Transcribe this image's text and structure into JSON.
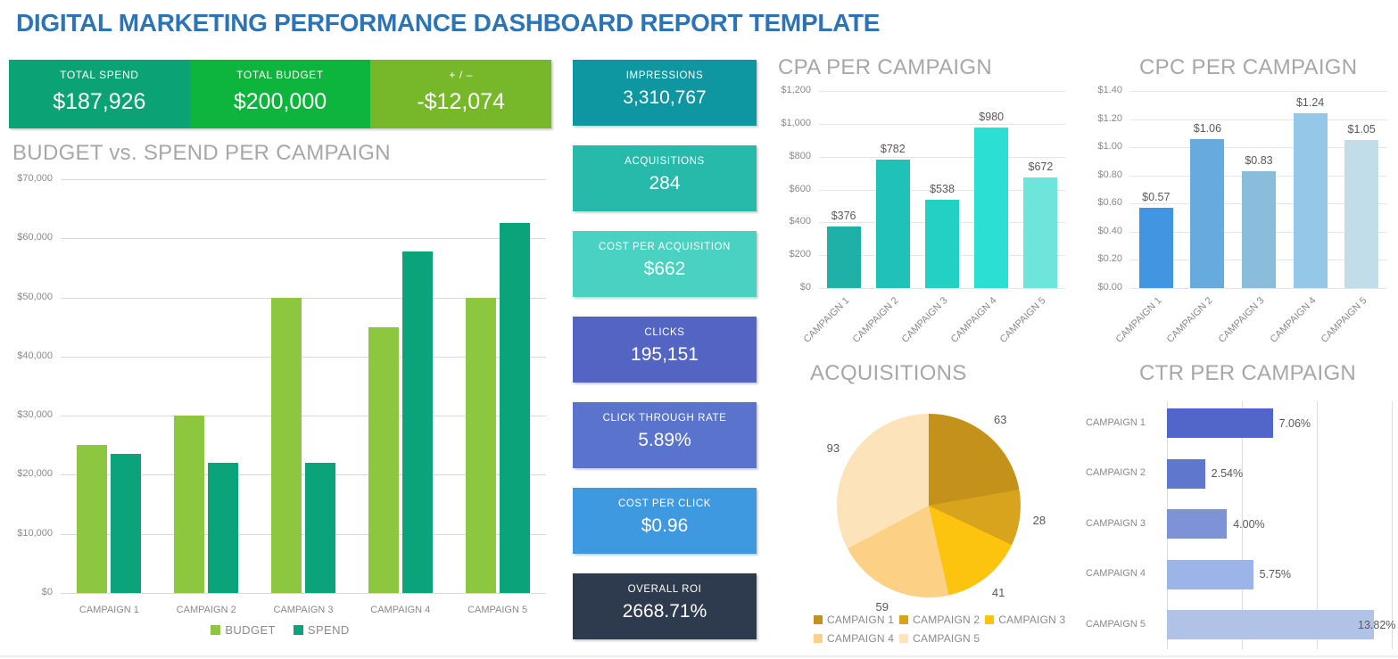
{
  "page_title": "DIGITAL MARKETING PERFORMANCE DASHBOARD REPORT TEMPLATE",
  "summary_cards": [
    {
      "label": "TOTAL SPEND",
      "value": "$187,926",
      "color": "#0ba376"
    },
    {
      "label": "TOTAL BUDGET",
      "value": "$200,000",
      "color": "#0db53c"
    },
    {
      "label": "+ / –",
      "value": "-$12,074",
      "color": "#77b82b"
    }
  ],
  "kpi_cards": [
    {
      "label": "IMPRESSIONS",
      "value": "3,310,767",
      "color": "#0e96a1"
    },
    {
      "label": "ACQUISITIONS",
      "value": "284",
      "color": "#27b9a9"
    },
    {
      "label": "COST PER ACQUISITION",
      "value": "$662",
      "color": "#49d1c1"
    },
    {
      "label": "CLICKS",
      "value": "195,151",
      "color": "#5464c2"
    },
    {
      "label": "CLICK THROUGH RATE",
      "value": "5.89%",
      "color": "#5a73cc"
    },
    {
      "label": "COST PER CLICK",
      "value": "$0.96",
      "color": "#3f99e0"
    },
    {
      "label": "OVERALL ROI",
      "value": "2668.71%",
      "color": "#2e3a4d"
    }
  ],
  "chart_data": [
    {
      "id": "budget_spend",
      "type": "bar",
      "title": "BUDGET vs. SPEND PER CAMPAIGN",
      "categories": [
        "CAMPAIGN 1",
        "CAMPAIGN 2",
        "CAMPAIGN 3",
        "CAMPAIGN 4",
        "CAMPAIGN 5"
      ],
      "series": [
        {
          "name": "BUDGET",
          "color": "#8dc63f",
          "values": [
            25000,
            30000,
            50000,
            45000,
            50000
          ]
        },
        {
          "name": "SPEND",
          "color": "#0aa37a",
          "values": [
            23500,
            22000,
            22000,
            57800,
            62600
          ]
        }
      ],
      "ylim": [
        0,
        70000
      ],
      "yticks": [
        "$0",
        "$10,000",
        "$20,000",
        "$30,000",
        "$40,000",
        "$50,000",
        "$60,000",
        "$70,000"
      ],
      "grid": true,
      "legend_position": "bottom"
    },
    {
      "id": "cpa",
      "type": "bar",
      "title": "CPA PER CAMPAIGN",
      "categories": [
        "CAMPAIGN 1",
        "CAMPAIGN 2",
        "CAMPAIGN 3",
        "CAMPAIGN 4",
        "CAMPAIGN 5"
      ],
      "values": [
        376,
        782,
        538,
        980,
        672
      ],
      "data_labels": [
        "$376",
        "$782",
        "$538",
        "$980",
        "$672"
      ],
      "bar_colors": [
        "#1fb1a8",
        "#20c1b6",
        "#23d1c4",
        "#2bdfd2",
        "#6de5da"
      ],
      "ylim": [
        0,
        1200
      ],
      "yticks": [
        "$0",
        "$200",
        "$400",
        "$600",
        "$800",
        "$1,000",
        "$1,200"
      ],
      "grid": true
    },
    {
      "id": "cpc",
      "type": "bar",
      "title": "CPC PER CAMPAIGN",
      "categories": [
        "CAMPAIGN 1",
        "CAMPAIGN 2",
        "CAMPAIGN 3",
        "CAMPAIGN 4",
        "CAMPAIGN 5"
      ],
      "values": [
        0.57,
        1.06,
        0.83,
        1.24,
        1.05
      ],
      "data_labels": [
        "$0.57",
        "$1.06",
        "$0.83",
        "$1.24",
        "$1.05"
      ],
      "bar_colors": [
        "#4295e0",
        "#67aadd",
        "#8abcdc",
        "#95c7e8",
        "#c3dcea"
      ],
      "ylim": [
        0,
        1.4
      ],
      "yticks": [
        "$0.00",
        "$0.20",
        "$0.40",
        "$0.60",
        "$0.80",
        "$1.00",
        "$1.20",
        "$1.40"
      ],
      "grid": true
    },
    {
      "id": "acquisitions_pie",
      "type": "pie",
      "title": "ACQUISITIONS",
      "categories": [
        "CAMPAIGN 1",
        "CAMPAIGN 2",
        "CAMPAIGN 3",
        "CAMPAIGN 4",
        "CAMPAIGN 5"
      ],
      "values": [
        63,
        28,
        41,
        59,
        93
      ],
      "slice_colors": [
        "#c4921a",
        "#d8a41e",
        "#fcc30f",
        "#fcd186",
        "#fde3ba"
      ],
      "start_angle": 0,
      "legend_position": "bottom"
    },
    {
      "id": "ctr",
      "type": "bar_horizontal",
      "title": "CTR PER CAMPAIGN",
      "categories": [
        "CAMPAIGN 1",
        "CAMPAIGN 2",
        "CAMPAIGN 3",
        "CAMPAIGN 4",
        "CAMPAIGN 5"
      ],
      "values": [
        7.06,
        2.54,
        4.0,
        5.75,
        13.82
      ],
      "data_labels": [
        "7.06%",
        "2.54%",
        "4.00%",
        "5.75%",
        "13.82%"
      ],
      "bar_colors": [
        "#5265c8",
        "#5f78ce",
        "#7e93d7",
        "#9db4e8",
        "#b0c2e5"
      ],
      "xlim": [
        0,
        15
      ],
      "xgrid": [
        0,
        5,
        10,
        15
      ],
      "grid": true
    }
  ]
}
